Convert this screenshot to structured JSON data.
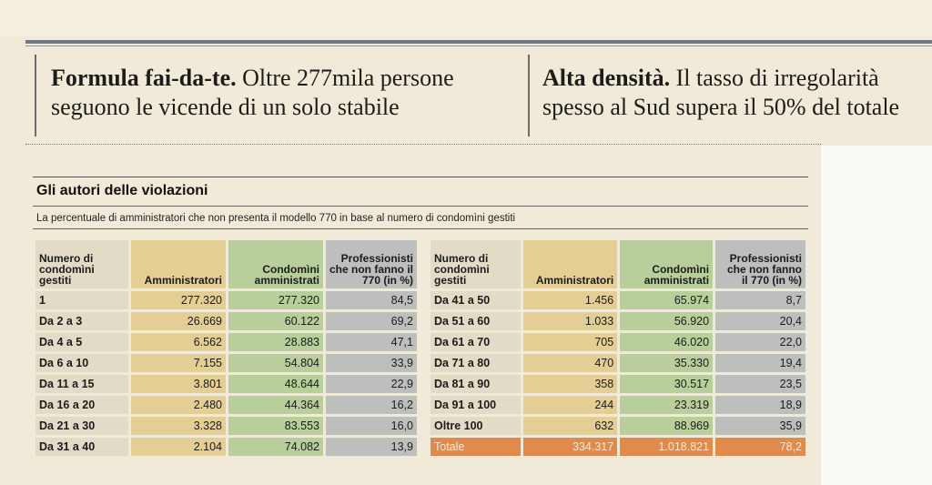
{
  "headlines": {
    "left": {
      "bold": "Formula fai-da-te.",
      "text": " Oltre 277mila persone seguono le vicende di un solo stabile"
    },
    "right": {
      "bold": "Alta densità.",
      "text": " Il tasso di irregolarità spesso al Sud supera il 50% del totale"
    }
  },
  "infobox": {
    "title": "Gli autori delle violazioni",
    "subtitle": "La percentuale di amministratori che non presenta il modello 770 in base al numero di condomìni gestiti",
    "headers": {
      "interval": "Numero di condomìni gestiti",
      "administrators": "Amministratori",
      "condos": "Condomìni amministrati",
      "pct": "Professionisti che non fanno il 770 (in %)"
    },
    "left_rows": [
      [
        "1",
        "277.320",
        "277.320",
        "84,5"
      ],
      [
        "Da 2 a 3",
        "26.669",
        "60.122",
        "69,2"
      ],
      [
        "Da 4 a 5",
        "6.562",
        "28.883",
        "47,1"
      ],
      [
        "Da 6 a 10",
        "7.155",
        "54.804",
        "33,9"
      ],
      [
        "Da 11 a 15",
        "3.801",
        "48.644",
        "22,9"
      ],
      [
        "Da 16 a 20",
        "2.480",
        "44.364",
        "16,2"
      ],
      [
        "Da 21 a 30",
        "3.328",
        "83.553",
        "16,0"
      ],
      [
        "Da 31 a 40",
        "2.104",
        "74.082",
        "13,9"
      ]
    ],
    "right_rows": [
      [
        "Da 41 a 50",
        "1.456",
        "65.974",
        "8,7"
      ],
      [
        "Da 51 a 60",
        "1.033",
        "56.920",
        "20,4"
      ],
      [
        "Da 61 a 70",
        "705",
        "46.020",
        "22,0"
      ],
      [
        "Da 71 a 80",
        "470",
        "35.330",
        "19,4"
      ],
      [
        "Da 81 a 90",
        "358",
        "30.517",
        "23,5"
      ],
      [
        "Da 91 a 100",
        "244",
        "23.319",
        "18,9"
      ],
      [
        "Oltre 100",
        "632",
        "88.969",
        "35,9"
      ]
    ],
    "total_row": [
      "Totale",
      "334.317",
      "1.018.821",
      "78,2"
    ]
  }
}
